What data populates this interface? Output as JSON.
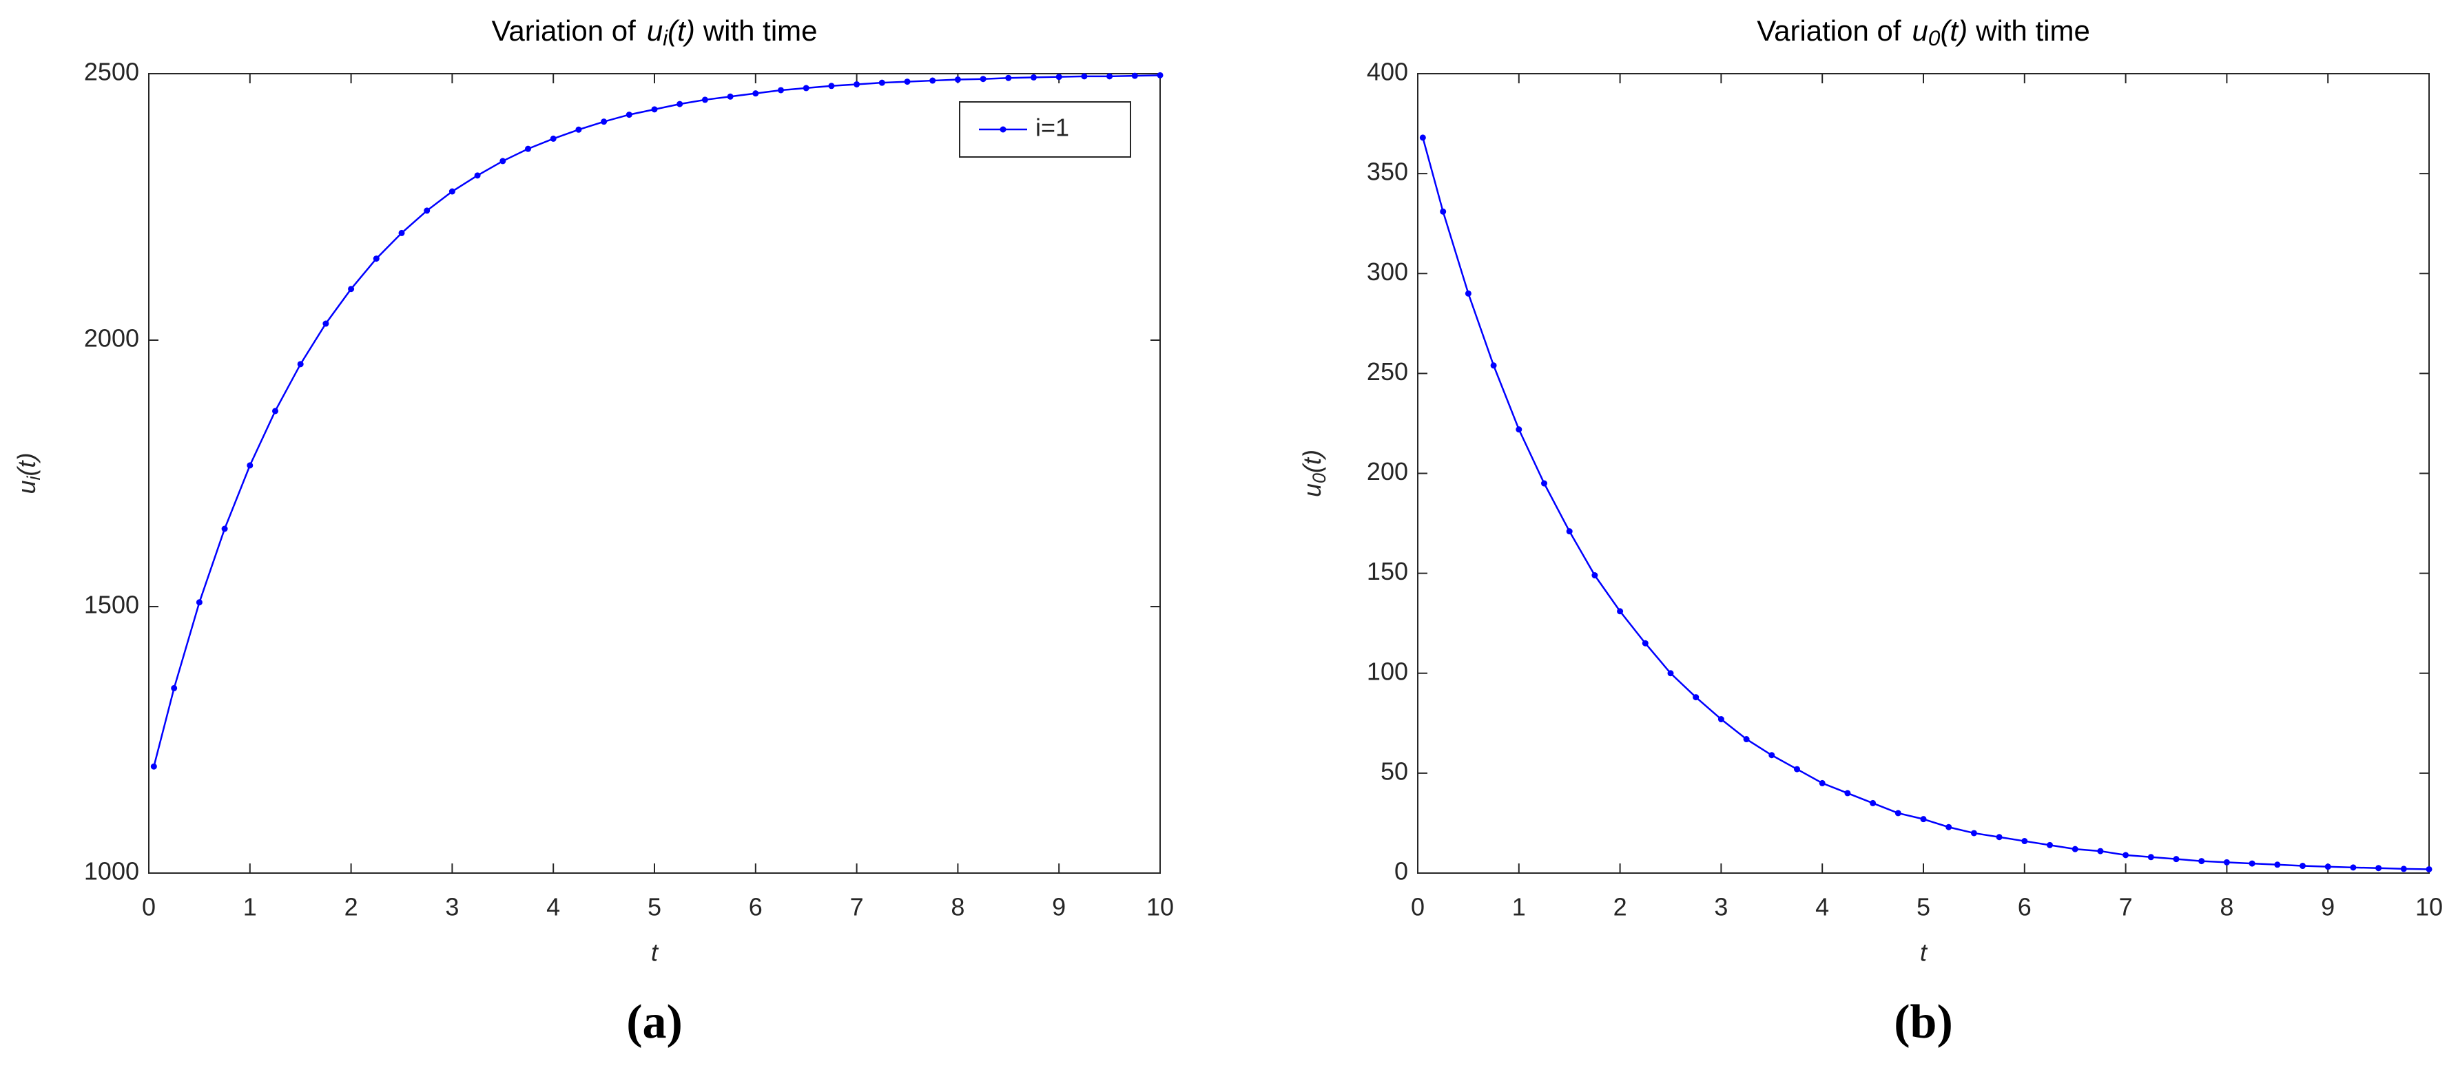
{
  "chart_data": [
    {
      "type": "line",
      "title": {
        "prefix": "Variation of",
        "symbol": "u",
        "subscript": "i",
        "argument": "(t)",
        "suffix": "with time"
      },
      "xlabel": "t",
      "ylabel": {
        "symbol": "u",
        "subscript": "i",
        "argument": "(t)"
      },
      "panel_label": "(a)",
      "x": [
        0.05,
        0.25,
        0.5,
        0.75,
        1,
        1.25,
        1.5,
        1.75,
        2,
        2.25,
        2.5,
        2.75,
        3,
        3.25,
        3.5,
        3.75,
        4,
        4.25,
        4.5,
        4.75,
        5,
        5.25,
        5.5,
        5.75,
        6,
        6.25,
        6.5,
        6.75,
        7,
        7.25,
        7.5,
        7.75,
        8,
        8.25,
        8.5,
        8.75,
        9,
        9.25,
        9.5,
        9.75,
        10
      ],
      "series": [
        {
          "name": "i=1",
          "color": "#0000ff",
          "values": [
            1200,
            1347,
            1508,
            1646,
            1765,
            1867,
            1955,
            2031,
            2096,
            2153,
            2201,
            2243,
            2279,
            2309,
            2336,
            2359,
            2378,
            2395,
            2410,
            2423,
            2433,
            2443,
            2451,
            2457,
            2463,
            2469,
            2473,
            2477,
            2480,
            2483,
            2485,
            2487,
            2489,
            2490,
            2492,
            2493,
            2494,
            2495,
            2495,
            2496,
            2497
          ]
        }
      ],
      "xlim": [
        0,
        10
      ],
      "xticks": [
        0,
        1,
        2,
        3,
        4,
        5,
        6,
        7,
        8,
        9,
        10
      ],
      "ylim": [
        1000,
        2500
      ],
      "yticks": [
        1000,
        1500,
        2000,
        2500
      ],
      "legend": "upper right"
    },
    {
      "type": "line",
      "title": {
        "prefix": "Variation of",
        "symbol": "u",
        "subscript": "0",
        "argument": "(t)",
        "suffix": "with time"
      },
      "xlabel": "t",
      "ylabel": {
        "symbol": "u",
        "subscript": "0",
        "argument": "(t)"
      },
      "panel_label": "(b)",
      "x": [
        0.05,
        0.25,
        0.5,
        0.75,
        1,
        1.25,
        1.5,
        1.75,
        2,
        2.25,
        2.5,
        2.75,
        3,
        3.25,
        3.5,
        3.75,
        4,
        4.25,
        4.5,
        4.75,
        5,
        5.25,
        5.5,
        5.75,
        6,
        6.25,
        6.5,
        6.75,
        7,
        7.25,
        7.5,
        7.75,
        8,
        8.25,
        8.5,
        8.75,
        9,
        9.25,
        9.5,
        9.75,
        10
      ],
      "color": "#0000ff",
      "values": [
        368,
        331,
        290,
        254,
        222,
        195,
        171,
        149,
        131,
        115,
        100,
        88,
        77,
        67,
        59,
        52,
        45,
        40,
        35,
        30,
        27,
        23,
        20,
        18,
        16,
        14,
        12,
        11,
        9,
        8,
        7,
        6,
        5.4,
        4.8,
        4.2,
        3.6,
        3.2,
        2.8,
        2.5,
        2.1,
        1.9
      ],
      "xlim": [
        0,
        10
      ],
      "xticks": [
        0,
        1,
        2,
        3,
        4,
        5,
        6,
        7,
        8,
        9,
        10
      ],
      "ylim": [
        0,
        400
      ],
      "yticks": [
        0,
        50,
        100,
        150,
        200,
        250,
        300,
        350,
        400
      ]
    }
  ]
}
